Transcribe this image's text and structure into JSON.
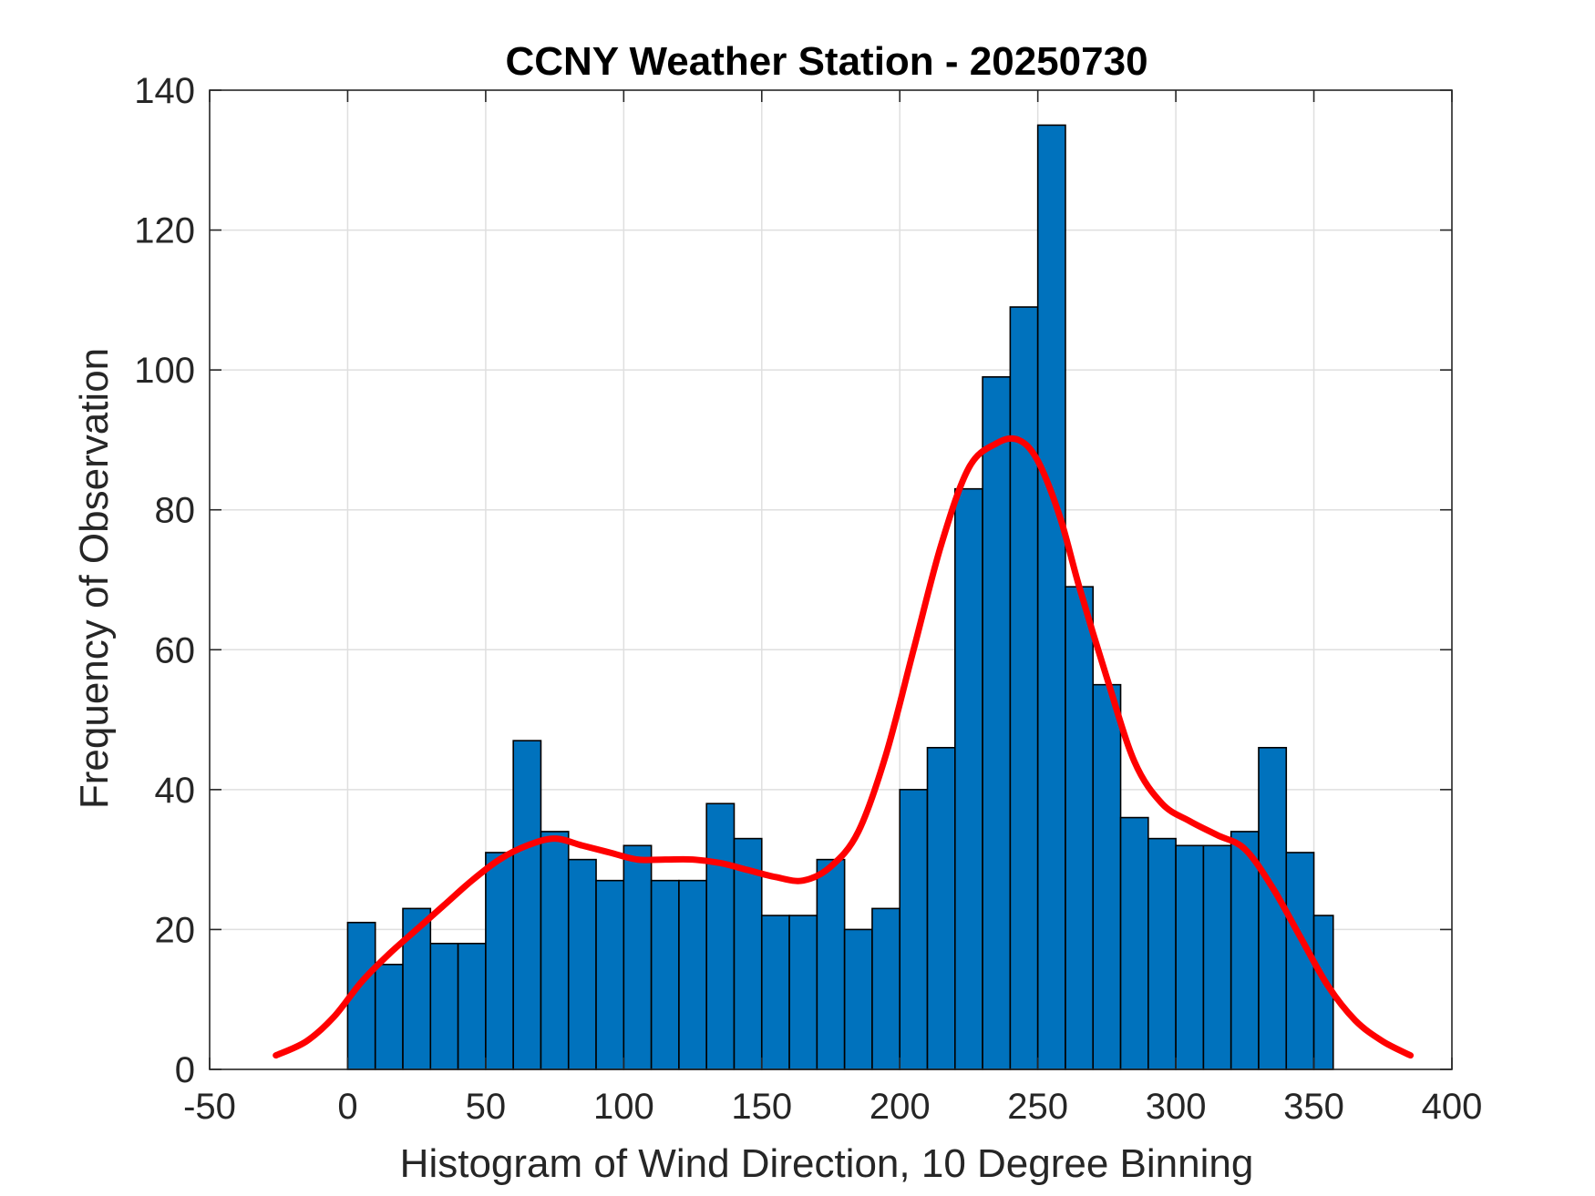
{
  "chart_data": {
    "type": "bar",
    "title": "CCNY Weather Station - 20250730",
    "xlabel": "Histogram of Wind Direction, 10 Degree Binning",
    "ylabel": "Frequency of Observation",
    "xlim": [
      -50,
      400
    ],
    "ylim": [
      0,
      140
    ],
    "grid": true,
    "x_ticks": [
      -50,
      0,
      50,
      100,
      150,
      200,
      250,
      300,
      350,
      400
    ],
    "y_ticks": [
      0,
      20,
      40,
      60,
      80,
      100,
      120,
      140
    ],
    "bin_width": 10,
    "bin_edges_start": [
      0,
      10,
      20,
      30,
      40,
      50,
      60,
      70,
      80,
      90,
      100,
      110,
      120,
      130,
      140,
      150,
      160,
      170,
      180,
      190,
      200,
      210,
      220,
      230,
      240,
      250,
      260,
      270,
      280,
      290,
      300,
      310,
      320,
      330,
      340,
      350
    ],
    "last_bin_end": 357,
    "values": [
      21,
      15,
      23,
      18,
      18,
      31,
      47,
      34,
      30,
      27,
      32,
      27,
      27,
      38,
      33,
      22,
      22,
      30,
      20,
      23,
      40,
      46,
      83,
      99,
      109,
      135,
      69,
      55,
      36,
      33,
      32,
      32,
      34,
      46,
      31,
      22
    ],
    "bar_color": "#0072BD",
    "curve_color": "#FF0000",
    "series": [
      {
        "name": "Histogram of Wind Direction",
        "type": "bar"
      },
      {
        "name": "Density fit",
        "type": "line",
        "x": [
          -26,
          -15,
          -5,
          5,
          15,
          25,
          35,
          45,
          55,
          65,
          75,
          85,
          95,
          105,
          115,
          125,
          135,
          145,
          155,
          165,
          175,
          185,
          195,
          205,
          215,
          225,
          235,
          243,
          250,
          258,
          265,
          275,
          285,
          295,
          305,
          315,
          325,
          335,
          345,
          355,
          365,
          375,
          385
        ],
        "y": [
          2,
          4,
          7.5,
          12.5,
          16.5,
          20,
          23.5,
          27,
          30,
          32,
          33,
          32,
          31,
          30,
          30,
          30,
          29.5,
          28.5,
          27.5,
          27,
          29,
          34,
          45,
          60,
          75,
          86,
          89.5,
          90,
          87,
          79,
          69,
          56,
          44,
          38,
          35.5,
          33.5,
          31.5,
          26,
          19,
          12,
          7,
          4,
          2
        ]
      }
    ]
  }
}
